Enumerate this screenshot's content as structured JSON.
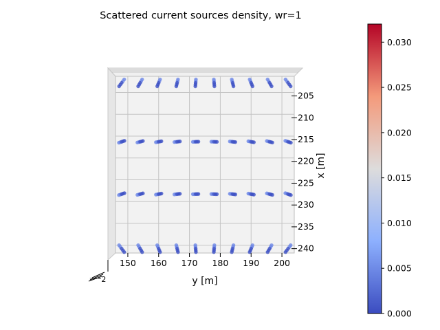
{
  "chart_data": {
    "type": "scatter",
    "title": "Scattered current sources density, wr=1",
    "xlabel": "y [m]",
    "ylabel": "x [m]",
    "y_ticks": [
      150,
      160,
      170,
      180,
      190,
      200
    ],
    "x_ticks": [
      205,
      210,
      215,
      220,
      225,
      230,
      235,
      240
    ],
    "ylim": [
      146,
      204
    ],
    "xlim": [
      200.5,
      241
    ],
    "grid": true,
    "colormap": "coolwarm",
    "colorbar": {
      "min": 0.0,
      "max": 0.032,
      "ticks": [
        "0.000",
        "0.005",
        "0.010",
        "0.015",
        "0.020",
        "0.025",
        "0.030"
      ]
    },
    "row_positions_x": [
      202,
      215.5,
      227.5,
      240
    ],
    "column_positions_y": [
      148,
      154,
      160,
      166,
      172,
      178,
      184,
      190,
      196,
      202
    ],
    "density_level": 0.003
  }
}
